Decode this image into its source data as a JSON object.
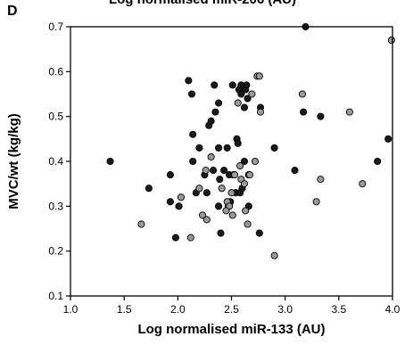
{
  "figure": {
    "panel_letter": "D",
    "top_title": "Log normalised miR-206 (AU)"
  },
  "chart_data": {
    "type": "scatter",
    "title": "",
    "xlabel": "Log normalised miR-133 (AU)",
    "ylabel": "MVC/wt (kg/kg)",
    "xlim": [
      1.0,
      4.0
    ],
    "ylim": [
      0.1,
      0.7
    ],
    "x_ticks": [
      "1.0",
      "1.5",
      "2.0",
      "2.5",
      "3.0",
      "3.5",
      "4.0"
    ],
    "y_ticks": [
      "0.1",
      "0.2",
      "0.3",
      "0.4",
      "0.5",
      "0.6",
      "0.7"
    ],
    "grid": false,
    "legend": "none",
    "series": [
      {
        "color": "#1a1a1a",
        "points": [
          [
            1.37,
            0.4
          ],
          [
            1.73,
            0.34
          ],
          [
            1.93,
            0.37
          ],
          [
            1.93,
            0.31
          ],
          [
            1.98,
            0.23
          ],
          [
            2.01,
            0.3
          ],
          [
            2.1,
            0.58
          ],
          [
            2.13,
            0.55
          ],
          [
            2.14,
            0.46
          ],
          [
            2.14,
            0.4
          ],
          [
            2.17,
            0.33
          ],
          [
            2.2,
            0.43
          ],
          [
            2.25,
            0.37
          ],
          [
            2.27,
            0.33
          ],
          [
            2.29,
            0.48
          ],
          [
            2.31,
            0.49
          ],
          [
            2.33,
            0.38
          ],
          [
            2.34,
            0.57
          ],
          [
            2.35,
            0.51
          ],
          [
            2.38,
            0.53
          ],
          [
            2.38,
            0.3
          ],
          [
            2.39,
            0.36
          ],
          [
            2.4,
            0.24
          ],
          [
            2.43,
            0.38
          ],
          [
            2.46,
            0.43
          ],
          [
            2.47,
            0.3
          ],
          [
            2.49,
            0.31
          ],
          [
            2.51,
            0.57
          ],
          [
            2.52,
            0.37
          ],
          [
            2.54,
            0.33
          ],
          [
            2.55,
            0.45
          ],
          [
            2.56,
            0.44
          ],
          [
            2.57,
            0.56
          ],
          [
            2.58,
            0.33
          ],
          [
            2.59,
            0.57
          ],
          [
            2.59,
            0.55
          ],
          [
            2.62,
            0.52
          ],
          [
            2.62,
            0.4
          ],
          [
            2.63,
            0.56
          ],
          [
            2.64,
            0.57
          ],
          [
            2.65,
            0.54
          ],
          [
            2.66,
            0.37
          ],
          [
            2.66,
            0.3
          ],
          [
            2.76,
            0.24
          ],
          [
            2.77,
            0.52
          ],
          [
            2.9,
            0.43
          ],
          [
            3.09,
            0.38
          ],
          [
            3.17,
            0.51
          ],
          [
            3.19,
            0.7
          ],
          [
            3.33,
            0.5
          ],
          [
            3.86,
            0.4
          ],
          [
            3.96,
            0.45
          ],
          [
            2.38,
            0.43
          ],
          [
            2.48,
            0.37
          ],
          [
            2.6,
            0.34
          ]
        ]
      },
      {
        "color": "#9a9a9a",
        "points": [
          [
            1.66,
            0.26
          ],
          [
            2.03,
            0.32
          ],
          [
            2.12,
            0.23
          ],
          [
            2.2,
            0.34
          ],
          [
            2.23,
            0.28
          ],
          [
            2.26,
            0.38
          ],
          [
            2.27,
            0.27
          ],
          [
            2.31,
            0.41
          ],
          [
            2.41,
            0.34
          ],
          [
            2.46,
            0.31
          ],
          [
            2.48,
            0.3
          ],
          [
            2.5,
            0.33
          ],
          [
            2.51,
            0.28
          ],
          [
            2.53,
            0.37
          ],
          [
            2.56,
            0.53
          ],
          [
            2.59,
            0.36
          ],
          [
            2.62,
            0.35
          ],
          [
            2.63,
            0.29
          ],
          [
            2.65,
            0.26
          ],
          [
            2.67,
            0.37
          ],
          [
            2.69,
            0.55
          ],
          [
            2.72,
            0.4
          ],
          [
            2.74,
            0.59
          ],
          [
            2.76,
            0.59
          ],
          [
            2.77,
            0.51
          ],
          [
            2.9,
            0.19
          ],
          [
            3.16,
            0.55
          ],
          [
            3.29,
            0.31
          ],
          [
            3.33,
            0.36
          ],
          [
            3.6,
            0.51
          ],
          [
            3.72,
            0.35
          ],
          [
            3.99,
            0.67
          ],
          [
            2.45,
            0.29
          ],
          [
            2.58,
            0.39
          ]
        ]
      }
    ]
  }
}
